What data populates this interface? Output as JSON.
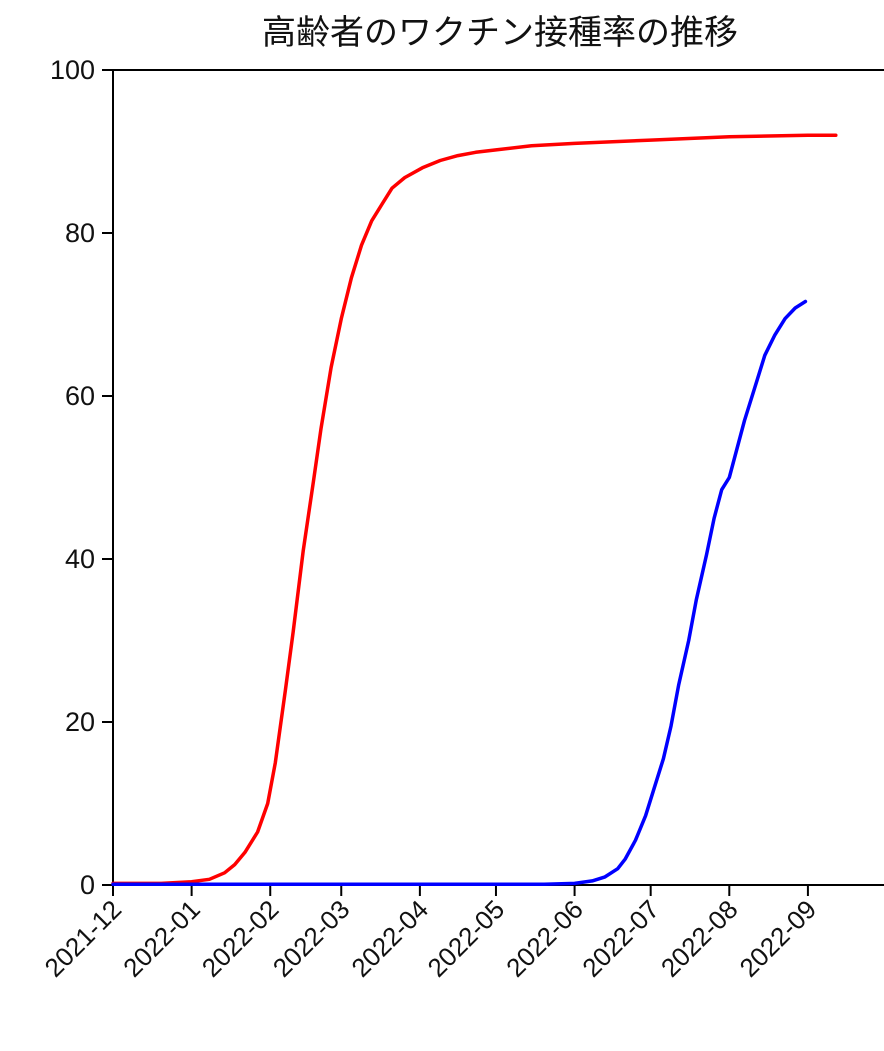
{
  "chart_data": {
    "type": "line",
    "title": "高齢者のワクチン接種率の推移",
    "xlabel": "",
    "ylabel": "",
    "ylim": [
      0,
      100
    ],
    "xlim": [
      "2021-12-01",
      "2022-10-01"
    ],
    "grid": false,
    "y_ticks": [
      "0",
      "20",
      "40",
      "60",
      "80",
      "100"
    ],
    "x_ticks": [
      "2021-12",
      "2022-01",
      "2022-02",
      "2022-03",
      "2022-04",
      "2022-05",
      "2022-06",
      "2022-07",
      "2022-08",
      "2022-09"
    ],
    "series": [
      {
        "color": "#ff0000",
        "points": [
          [
            "2021-12-01",
            0.2
          ],
          [
            "2021-12-20",
            0.2
          ],
          [
            "2022-01-01",
            0.4
          ],
          [
            "2022-01-08",
            0.7
          ],
          [
            "2022-01-14",
            1.5
          ],
          [
            "2022-01-18",
            2.5
          ],
          [
            "2022-01-22",
            4.0
          ],
          [
            "2022-01-27",
            6.5
          ],
          [
            "2022-01-31",
            10.0
          ],
          [
            "2022-02-03",
            15.0
          ],
          [
            "2022-02-07",
            24.0
          ],
          [
            "2022-02-10",
            31.0
          ],
          [
            "2022-02-14",
            41.0
          ],
          [
            "2022-02-18",
            49.5
          ],
          [
            "2022-02-21",
            56.0
          ],
          [
            "2022-02-25",
            63.5
          ],
          [
            "2022-03-01",
            69.5
          ],
          [
            "2022-03-05",
            74.5
          ],
          [
            "2022-03-09",
            78.5
          ],
          [
            "2022-03-13",
            81.5
          ],
          [
            "2022-03-17",
            83.5
          ],
          [
            "2022-03-21",
            85.5
          ],
          [
            "2022-03-26",
            86.8
          ],
          [
            "2022-04-02",
            88.0
          ],
          [
            "2022-04-09",
            88.9
          ],
          [
            "2022-04-16",
            89.5
          ],
          [
            "2022-04-23",
            89.9
          ],
          [
            "2022-05-01",
            90.2
          ],
          [
            "2022-05-15",
            90.7
          ],
          [
            "2022-06-01",
            91.0
          ],
          [
            "2022-07-01",
            91.4
          ],
          [
            "2022-08-01",
            91.8
          ],
          [
            "2022-09-01",
            92.0
          ],
          [
            "2022-09-12",
            92.0
          ]
        ]
      },
      {
        "color": "#0000ff",
        "points": [
          [
            "2021-12-01",
            0.1
          ],
          [
            "2022-05-20",
            0.1
          ],
          [
            "2022-06-01",
            0.2
          ],
          [
            "2022-06-08",
            0.5
          ],
          [
            "2022-06-13",
            1.0
          ],
          [
            "2022-06-18",
            2.0
          ],
          [
            "2022-06-21",
            3.2
          ],
          [
            "2022-06-25",
            5.5
          ],
          [
            "2022-06-29",
            8.5
          ],
          [
            "2022-07-02",
            11.5
          ],
          [
            "2022-07-06",
            15.5
          ],
          [
            "2022-07-09",
            19.5
          ],
          [
            "2022-07-12",
            24.5
          ],
          [
            "2022-07-16",
            30.0
          ],
          [
            "2022-07-19",
            35.0
          ],
          [
            "2022-07-23",
            40.5
          ],
          [
            "2022-07-26",
            45.0
          ],
          [
            "2022-07-29",
            48.5
          ],
          [
            "2022-08-01",
            50.0
          ],
          [
            "2022-08-04",
            53.5
          ],
          [
            "2022-08-07",
            57.0
          ],
          [
            "2022-08-11",
            61.0
          ],
          [
            "2022-08-15",
            65.0
          ],
          [
            "2022-08-19",
            67.5
          ],
          [
            "2022-08-23",
            69.5
          ],
          [
            "2022-08-27",
            70.8
          ],
          [
            "2022-08-31",
            71.6
          ]
        ]
      }
    ]
  }
}
